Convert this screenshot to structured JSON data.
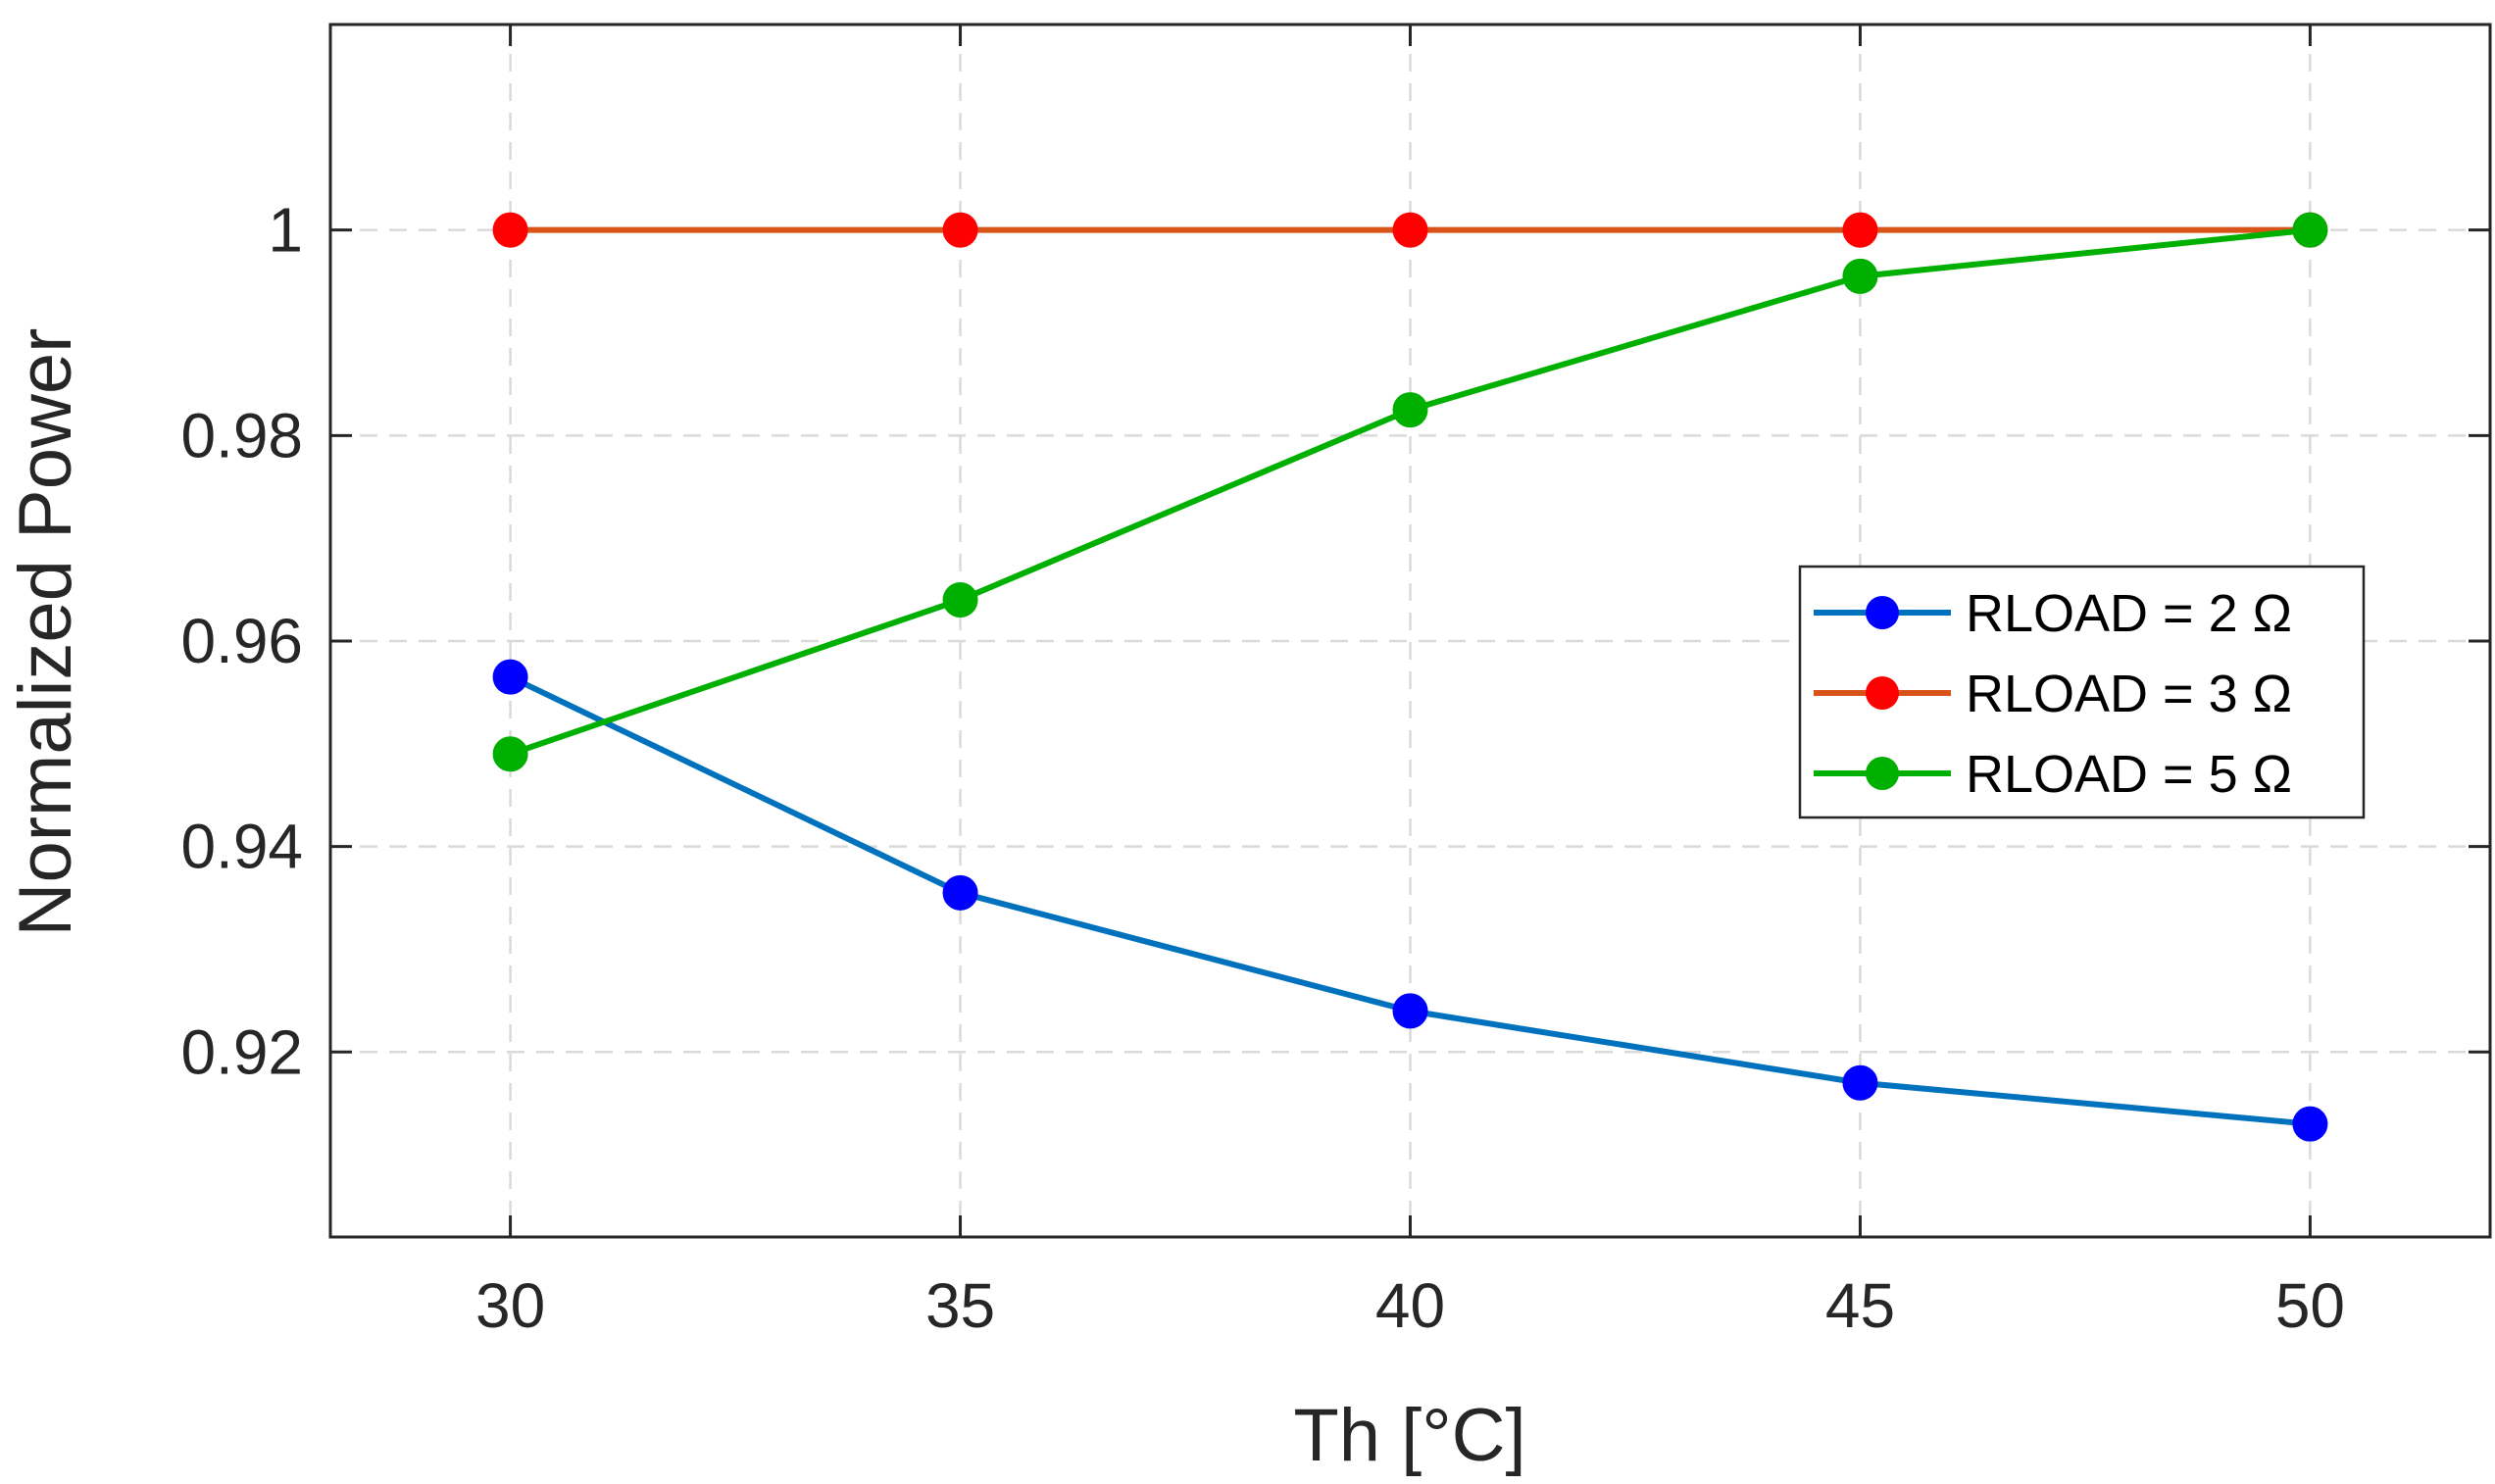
{
  "chart_data": {
    "type": "line",
    "title": "",
    "xlabel": "Th [°C]",
    "ylabel": "Normalized Power",
    "x": [
      30,
      35,
      40,
      45,
      50
    ],
    "xticks": [
      "30",
      "35",
      "40",
      "45",
      "50"
    ],
    "yticks": [
      "0.92",
      "0.94",
      "0.96",
      "0.98",
      "1"
    ],
    "xlim": [
      28,
      52
    ],
    "ylim": [
      0.902,
      1.02
    ],
    "grid": true,
    "legend_position": "right",
    "series": [
      {
        "name": "RLOAD = 2 Ω",
        "line_color": "#0072BD",
        "marker_color": "#0000FF",
        "values": [
          0.9565,
          0.9355,
          0.924,
          0.917,
          0.913
        ]
      },
      {
        "name": "RLOAD = 3 Ω",
        "line_color": "#D95319",
        "marker_color": "#FF0000",
        "values": [
          1.0,
          1.0,
          1.0,
          1.0,
          1.0
        ]
      },
      {
        "name": "RLOAD = 5 Ω",
        "line_color": "#00B000",
        "marker_color": "#00B000",
        "values": [
          0.949,
          0.964,
          0.9825,
          0.9955,
          1.0
        ]
      }
    ]
  }
}
